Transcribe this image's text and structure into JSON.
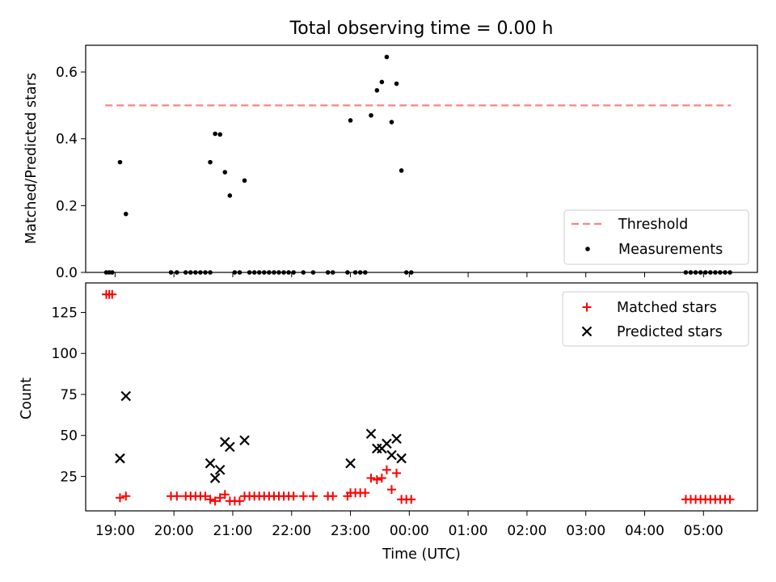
{
  "chart_data": [
    {
      "type": "scatter",
      "title": "Total observing time = 0.00 h",
      "xlabel": "",
      "ylabel": "Matched/Predicted stars",
      "x_range": [
        "18:30",
        "05:55"
      ],
      "ylim": [
        0,
        0.68
      ],
      "yticks": [
        0.0,
        0.2,
        0.4,
        0.6
      ],
      "xticks": [
        "19:00",
        "20:00",
        "21:00",
        "22:00",
        "23:00",
        "00:00",
        "01:00",
        "02:00",
        "03:00",
        "04:00",
        "05:00"
      ],
      "grid": false,
      "legend_position": "bottom-right",
      "series": [
        {
          "name": "Threshold",
          "kind": "dashed-line",
          "color": "#ff8080",
          "y": 0.5,
          "x_span": [
            "18:50",
            "05:28"
          ]
        },
        {
          "name": "Measurements",
          "kind": "point",
          "color": "#000000",
          "points": [
            [
              "18:51",
              0
            ],
            [
              "18:54",
              0
            ],
            [
              "18:57",
              0
            ],
            [
              "19:05",
              0.33
            ],
            [
              "19:11",
              0.175
            ],
            [
              "19:57",
              0
            ],
            [
              "20:03",
              0
            ],
            [
              "20:12",
              0
            ],
            [
              "20:17",
              0
            ],
            [
              "20:22",
              0
            ],
            [
              "20:27",
              0
            ],
            [
              "20:32",
              0
            ],
            [
              "20:37",
              0
            ],
            [
              "20:37",
              0.33
            ],
            [
              "20:42",
              0.415
            ],
            [
              "20:47",
              0.413
            ],
            [
              "20:52",
              0.3
            ],
            [
              "20:57",
              0.23
            ],
            [
              "21:02",
              0
            ],
            [
              "21:07",
              0
            ],
            [
              "21:12",
              0.275
            ],
            [
              "21:17",
              0
            ],
            [
              "21:22",
              0
            ],
            [
              "21:27",
              0
            ],
            [
              "21:32",
              0
            ],
            [
              "21:37",
              0
            ],
            [
              "21:42",
              0
            ],
            [
              "21:47",
              0
            ],
            [
              "21:52",
              0
            ],
            [
              "21:57",
              0
            ],
            [
              "22:02",
              0
            ],
            [
              "22:12",
              0
            ],
            [
              "22:22",
              0
            ],
            [
              "22:37",
              0
            ],
            [
              "22:42",
              0
            ],
            [
              "22:57",
              0
            ],
            [
              "23:00",
              0.455
            ],
            [
              "23:05",
              0
            ],
            [
              "23:10",
              0
            ],
            [
              "23:15",
              0
            ],
            [
              "23:21",
              0.47
            ],
            [
              "23:27",
              0.545
            ],
            [
              "23:32",
              0.57
            ],
            [
              "23:37",
              0.645
            ],
            [
              "23:42",
              0.45
            ],
            [
              "23:47",
              0.565
            ],
            [
              "23:52",
              0.305
            ],
            [
              "23:57",
              0
            ],
            [
              "00:02",
              0
            ],
            [
              "04:42",
              0
            ],
            [
              "04:47",
              0
            ],
            [
              "04:52",
              0
            ],
            [
              "04:57",
              0
            ],
            [
              "05:02",
              0
            ],
            [
              "05:07",
              0
            ],
            [
              "05:12",
              0
            ],
            [
              "05:17",
              0
            ],
            [
              "05:22",
              0
            ],
            [
              "05:27",
              0
            ]
          ]
        }
      ]
    },
    {
      "type": "scatter",
      "title": "",
      "xlabel": "Time (UTC)",
      "ylabel": "Count",
      "x_range": [
        "18:30",
        "05:55"
      ],
      "ylim": [
        4,
        143
      ],
      "yticks": [
        25,
        50,
        75,
        100,
        125
      ],
      "xticks": [
        "19:00",
        "20:00",
        "21:00",
        "22:00",
        "23:00",
        "00:00",
        "01:00",
        "02:00",
        "03:00",
        "04:00",
        "05:00"
      ],
      "grid": false,
      "legend_position": "top-right",
      "series": [
        {
          "name": "Matched stars",
          "marker": "plus",
          "color": "#ff0000",
          "points": [
            [
              "18:51",
              136
            ],
            [
              "18:54",
              136
            ],
            [
              "18:57",
              136
            ],
            [
              "19:05",
              12
            ],
            [
              "19:11",
              13
            ],
            [
              "19:57",
              13
            ],
            [
              "20:03",
              13
            ],
            [
              "20:12",
              13
            ],
            [
              "20:17",
              13
            ],
            [
              "20:22",
              13
            ],
            [
              "20:27",
              13
            ],
            [
              "20:32",
              13
            ],
            [
              "20:37",
              11
            ],
            [
              "20:42",
              10
            ],
            [
              "20:47",
              12
            ],
            [
              "20:52",
              14
            ],
            [
              "20:57",
              10
            ],
            [
              "21:02",
              10
            ],
            [
              "21:07",
              10
            ],
            [
              "21:12",
              13
            ],
            [
              "21:17",
              13
            ],
            [
              "21:22",
              13
            ],
            [
              "21:27",
              13
            ],
            [
              "21:32",
              13
            ],
            [
              "21:37",
              13
            ],
            [
              "21:42",
              13
            ],
            [
              "21:47",
              13
            ],
            [
              "21:52",
              13
            ],
            [
              "21:57",
              13
            ],
            [
              "22:02",
              13
            ],
            [
              "22:12",
              13
            ],
            [
              "22:22",
              13
            ],
            [
              "22:37",
              13
            ],
            [
              "22:42",
              13
            ],
            [
              "22:57",
              13
            ],
            [
              "23:00",
              15
            ],
            [
              "23:05",
              15
            ],
            [
              "23:10",
              15
            ],
            [
              "23:15",
              15
            ],
            [
              "23:21",
              24
            ],
            [
              "23:27",
              23
            ],
            [
              "23:32",
              24
            ],
            [
              "23:37",
              29
            ],
            [
              "23:42",
              17
            ],
            [
              "23:47",
              27
            ],
            [
              "23:52",
              11
            ],
            [
              "23:57",
              11
            ],
            [
              "00:02",
              11
            ],
            [
              "04:42",
              11
            ],
            [
              "04:47",
              11
            ],
            [
              "04:52",
              11
            ],
            [
              "04:57",
              11
            ],
            [
              "05:02",
              11
            ],
            [
              "05:07",
              11
            ],
            [
              "05:12",
              11
            ],
            [
              "05:17",
              11
            ],
            [
              "05:22",
              11
            ],
            [
              "05:27",
              11
            ]
          ]
        },
        {
          "name": "Predicted stars",
          "marker": "x",
          "color": "#000000",
          "points": [
            [
              "19:05",
              36
            ],
            [
              "19:11",
              74
            ],
            [
              "20:37",
              33
            ],
            [
              "20:42",
              24
            ],
            [
              "20:47",
              29
            ],
            [
              "20:52",
              46
            ],
            [
              "20:57",
              43
            ],
            [
              "21:12",
              47
            ],
            [
              "23:00",
              33
            ],
            [
              "23:21",
              51
            ],
            [
              "23:27",
              42
            ],
            [
              "23:32",
              42
            ],
            [
              "23:37",
              45
            ],
            [
              "23:42",
              38
            ],
            [
              "23:47",
              48
            ],
            [
              "23:52",
              36
            ]
          ]
        }
      ]
    }
  ]
}
